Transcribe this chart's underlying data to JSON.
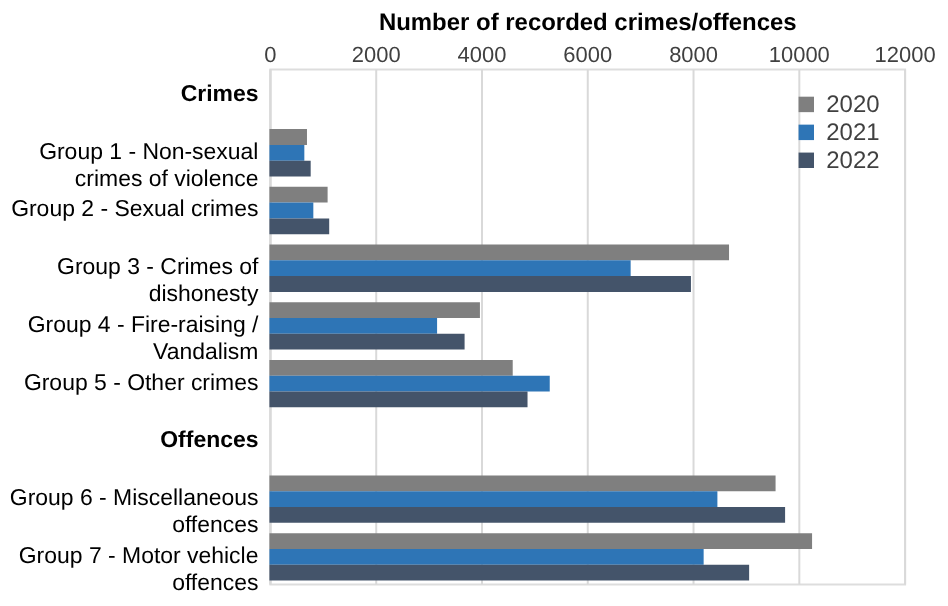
{
  "chart_data": {
    "type": "bar",
    "orientation": "horizontal",
    "xlabel": "Number of recorded crimes/offences",
    "categories": [
      "Crimes",
      "Group 1 - Non-sexual crimes of violence",
      "Group 2 - Sexual crimes",
      "Group 3 - Crimes of dishonesty",
      "Group 4 - Fire-raising / Vandalism",
      "Group 5 - Other crimes",
      "Offences",
      "Group 6 - Miscellaneous offences",
      "Group 7 - Motor vehicle offences"
    ],
    "series": [
      {
        "name": "2020",
        "color": "#7f7f7f",
        "values": [
          null,
          710,
          1100,
          8690,
          3980,
          4600,
          null,
          9570,
          10260
        ]
      },
      {
        "name": "2021",
        "color": "#2e75b6",
        "values": [
          null,
          660,
          830,
          6830,
          3170,
          5300,
          null,
          8470,
          8210
        ]
      },
      {
        "name": "2022",
        "color": "#44546a",
        "values": [
          null,
          780,
          1130,
          7970,
          3690,
          4880,
          null,
          9750,
          9070
        ]
      }
    ],
    "xlim": [
      0,
      12000
    ],
    "xticks": [
      0,
      2000,
      4000,
      6000,
      8000,
      10000,
      12000
    ],
    "grid": "x",
    "legend": "top right"
  }
}
